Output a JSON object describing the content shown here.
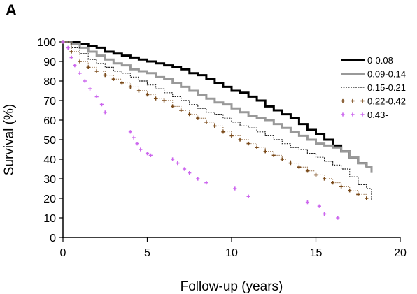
{
  "chart_data": {
    "panel_label": "A",
    "type": "line",
    "title": "",
    "xlabel": "Follow-up (years)",
    "ylabel": "Survival (%)",
    "xlim": [
      0,
      20
    ],
    "ylim": [
      0,
      100
    ],
    "xticks": [
      0,
      5,
      10,
      15,
      20
    ],
    "yticks": [
      0,
      10,
      20,
      30,
      40,
      50,
      60,
      70,
      80,
      90,
      100
    ],
    "grid": false,
    "legend_position": "top-right",
    "series": [
      {
        "name": "0-0.08",
        "color": "#000000",
        "style": "solid-thick",
        "x": [
          0,
          0.5,
          1,
          1.5,
          2,
          2.5,
          3,
          3.5,
          4,
          4.5,
          5,
          5.5,
          6,
          6.5,
          7,
          7.5,
          8,
          8.5,
          9,
          9.5,
          10,
          10.5,
          11,
          11.5,
          12,
          12.5,
          13,
          13.5,
          14,
          14.5,
          15,
          15.5,
          16,
          16.5,
          17,
          17.5,
          18
        ],
        "values": [
          100,
          100,
          99,
          98,
          97,
          95,
          94,
          93,
          92,
          91,
          90,
          89,
          88,
          87,
          86,
          84,
          83,
          81,
          79,
          77,
          75,
          74,
          72,
          70,
          67,
          65,
          63,
          61,
          58,
          55,
          53,
          50,
          47,
          44,
          41,
          38,
          36
        ]
      },
      {
        "name": "0.09-0.14",
        "color": "#999999",
        "style": "solid-thick",
        "x": [
          0,
          0.5,
          1,
          1.5,
          2,
          2.5,
          3,
          3.5,
          4,
          4.5,
          5,
          5.5,
          6,
          6.5,
          7,
          7.5,
          8,
          8.5,
          9,
          9.5,
          10,
          10.5,
          11,
          11.5,
          12,
          12.5,
          13,
          13.5,
          14,
          14.5,
          15,
          15.5,
          16,
          16.5,
          17,
          17.5,
          18,
          18.3
        ],
        "values": [
          100,
          99,
          97,
          95,
          93,
          91,
          89,
          88,
          86,
          85,
          84,
          82,
          81,
          79,
          77,
          75,
          73,
          71,
          69,
          68,
          66,
          64,
          62,
          61,
          60,
          58,
          56,
          54,
          52,
          50,
          48,
          47,
          46,
          44,
          41,
          38,
          36,
          33
        ]
      },
      {
        "name": "0.15-0.21",
        "color": "#222222",
        "style": "dotted",
        "x": [
          0,
          0.5,
          1,
          1.5,
          2,
          2.5,
          3,
          3.5,
          4,
          4.5,
          5,
          5.5,
          6,
          6.5,
          7,
          7.5,
          8,
          8.5,
          9,
          9.5,
          10,
          10.5,
          11,
          11.5,
          12,
          12.5,
          13,
          13.5,
          14,
          14.5,
          15,
          15.5,
          16,
          16.5,
          17,
          17.5,
          18,
          18.3
        ],
        "values": [
          100,
          97,
          94,
          91,
          89,
          87,
          85,
          84,
          82,
          80,
          78,
          76,
          74,
          72,
          70,
          68,
          66,
          64,
          63,
          61,
          59,
          57,
          56,
          54,
          52,
          50,
          48,
          46,
          45,
          43,
          41,
          39,
          37,
          35,
          31,
          27,
          25,
          19
        ]
      },
      {
        "name": "0.22-0.42",
        "color": "#7a4a1a",
        "style": "cross-marker",
        "x": [
          0,
          0.5,
          1,
          1.5,
          2,
          2.5,
          3,
          3.5,
          4,
          4.5,
          5,
          5.5,
          6,
          6.5,
          7,
          7.5,
          8,
          8.5,
          9,
          9.5,
          10,
          10.5,
          11,
          11.5,
          12,
          12.5,
          13,
          13.5,
          14,
          14.5,
          15,
          15.5,
          16,
          16.5,
          17,
          17.5,
          18
        ],
        "values": [
          100,
          95,
          90,
          87,
          85,
          83,
          81,
          79,
          77,
          75,
          73,
          71,
          70,
          67,
          65,
          63,
          61,
          59,
          57,
          54,
          52,
          50,
          48,
          46,
          44,
          42,
          40,
          38,
          36,
          34,
          32,
          30,
          28,
          26,
          24,
          22,
          20
        ]
      },
      {
        "name": "0.43-",
        "color": "#cc66ee",
        "style": "cross-marker",
        "x": [
          0,
          0.3,
          0.5,
          0.7,
          1,
          1.3,
          1.6,
          2,
          2.3,
          2.5,
          4,
          4.2,
          4.4,
          4.6,
          5,
          5.2,
          6.5,
          6.8,
          7.2,
          7.5,
          8,
          8.5,
          10.2,
          11,
          14.5,
          15.2,
          15.5,
          16.3
        ],
        "values": [
          100,
          97,
          92,
          88,
          84,
          80,
          76,
          72,
          68,
          64,
          54,
          51,
          48,
          45,
          43,
          42,
          40,
          38,
          35,
          33,
          30,
          28,
          25,
          21,
          18,
          16,
          12,
          10
        ]
      }
    ]
  }
}
